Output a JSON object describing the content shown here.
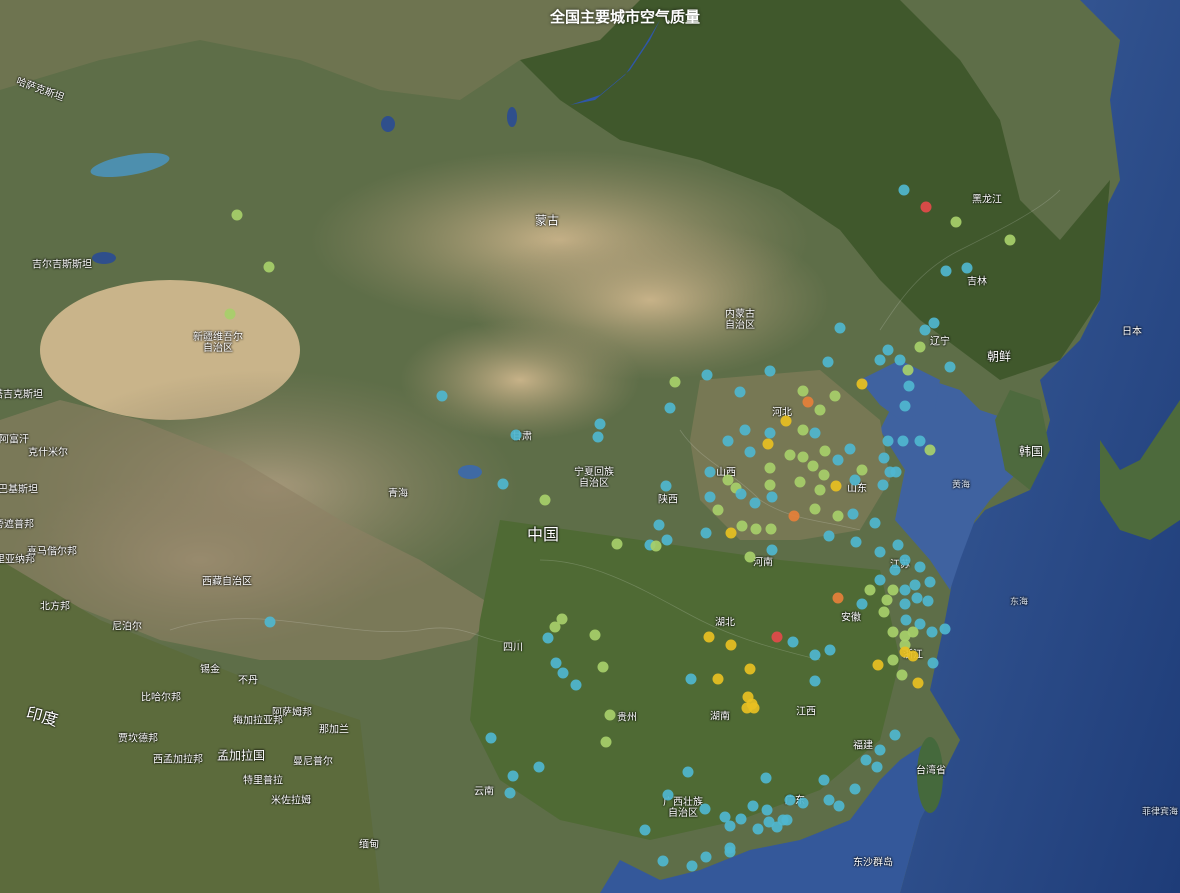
{
  "title": "全国主要城市空气质量",
  "labels": {
    "kazakhstan": "哈萨克斯坦",
    "mongolia": "蒙古",
    "inner_mongolia": "内蒙古\n自治区",
    "xinjiang": "新疆维吾尔\n自治区",
    "gansu": "甘肃",
    "ningxia": "宁夏回族\n自治区",
    "qinghai": "青海",
    "tibet": "西藏自治区",
    "china": "中国",
    "shanxi": "山西",
    "shaanxi": "陕西",
    "hebei": "河北",
    "shandong": "山东",
    "henan": "河南",
    "jiangsu": "江苏",
    "anhui": "安徽",
    "hubei": "湖北",
    "zhejiang": "浙江",
    "sichuan": "四川",
    "guizhou": "贵州",
    "hunan": "湖南",
    "jiangxi": "江西",
    "fujian": "福建",
    "yunnan": "云南",
    "guangxi": "广西壮族\n自治区",
    "guangdong": "广东",
    "taiwan": "台湾省",
    "jilin": "吉林",
    "liaoning": "辽宁",
    "heilongjiang": "黑龙江",
    "north_korea": "朝鲜",
    "south_korea": "韩国",
    "japan": "日本",
    "yellow_sea": "黄海",
    "east_sea": "东海",
    "philippine_sea": "菲律宾海",
    "xisha": "东沙群岛",
    "nepal": "尼泊尔",
    "india": "印度",
    "bhutan": "不丹",
    "bangladesh": "孟加拉国",
    "myanmar": "缅甸",
    "west_bengal": "西孟加拉邦",
    "assam": "阿萨姆邦",
    "meghalaya": "梅加拉亚邦",
    "nagaland": "那加兰",
    "manipur": "曼尼普尔",
    "tripura": "特里普拉",
    "mizoram": "米佐拉姆",
    "bihar": "比哈尔邦",
    "jharkhand": "贾坎德邦",
    "sikkim": "锡金",
    "uttar": "北方邦",
    "kyrgyz": "吉尔吉斯斯坦",
    "tajik": "塔吉克斯坦",
    "afghan": "阿富汗",
    "pak": "巴基斯坦",
    "kashmir": "克什米尔",
    "haryana": "哈里亚纳邦",
    "punjab": "旁遮普邦",
    "himachal": "喜马偕尔邦"
  },
  "colors": {
    "good": "#4fb6cf",
    "moderate": "#a7cf6a",
    "sensitive": "#e8c022",
    "unhealthy": "#e6803a",
    "severe": "#e34a4a"
  },
  "aqi_points": [
    [
      "good",
      904,
      190
    ],
    [
      "severe",
      926,
      207
    ],
    [
      "moderate",
      956,
      222
    ],
    [
      "moderate",
      1010,
      240
    ],
    [
      "good",
      967,
      268
    ],
    [
      "good",
      946,
      271
    ],
    [
      "moderate",
      237,
      215
    ],
    [
      "moderate",
      269,
      267
    ],
    [
      "moderate",
      230,
      314
    ],
    [
      "good",
      934,
      323
    ],
    [
      "good",
      925,
      330
    ],
    [
      "good",
      840,
      328
    ],
    [
      "moderate",
      920,
      347
    ],
    [
      "good",
      888,
      350
    ],
    [
      "good",
      900,
      360
    ],
    [
      "good",
      880,
      360
    ],
    [
      "good",
      828,
      362
    ],
    [
      "good",
      770,
      371
    ],
    [
      "moderate",
      908,
      370
    ],
    [
      "good",
      950,
      367
    ],
    [
      "sensitive",
      862,
      384
    ],
    [
      "good",
      909,
      386
    ],
    [
      "good",
      905,
      406
    ],
    [
      "moderate",
      675,
      382
    ],
    [
      "good",
      707,
      375
    ],
    [
      "good",
      740,
      392
    ],
    [
      "moderate",
      803,
      391
    ],
    [
      "unhealthy",
      808,
      402
    ],
    [
      "moderate",
      820,
      410
    ],
    [
      "good",
      670,
      408
    ],
    [
      "sensitive",
      786,
      421
    ],
    [
      "moderate",
      835,
      396
    ],
    [
      "good",
      442,
      396
    ],
    [
      "good",
      600,
      424
    ],
    [
      "good",
      598,
      437
    ],
    [
      "good",
      516,
      435
    ],
    [
      "moderate",
      803,
      430
    ],
    [
      "good",
      815,
      433
    ],
    [
      "good",
      745,
      430
    ],
    [
      "good",
      770,
      433
    ],
    [
      "good",
      728,
      441
    ],
    [
      "good",
      888,
      441
    ],
    [
      "good",
      903,
      441
    ],
    [
      "good",
      920,
      441
    ],
    [
      "moderate",
      930,
      450
    ],
    [
      "sensitive",
      768,
      444
    ],
    [
      "good",
      750,
      452
    ],
    [
      "moderate",
      790,
      455
    ],
    [
      "moderate",
      803,
      457
    ],
    [
      "moderate",
      825,
      451
    ],
    [
      "good",
      850,
      449
    ],
    [
      "good",
      838,
      460
    ],
    [
      "good",
      884,
      458
    ],
    [
      "good",
      890,
      472
    ],
    [
      "good",
      883,
      485
    ],
    [
      "good",
      896,
      472
    ],
    [
      "moderate",
      813,
      466
    ],
    [
      "moderate",
      824,
      475
    ],
    [
      "moderate",
      770,
      468
    ],
    [
      "good",
      710,
      472
    ],
    [
      "moderate",
      728,
      480
    ],
    [
      "moderate",
      736,
      488
    ],
    [
      "moderate",
      770,
      485
    ],
    [
      "moderate",
      800,
      482
    ],
    [
      "sensitive",
      836,
      486
    ],
    [
      "moderate",
      820,
      490
    ],
    [
      "good",
      855,
      480
    ],
    [
      "moderate",
      862,
      470
    ],
    [
      "good",
      503,
      484
    ],
    [
      "moderate",
      545,
      500
    ],
    [
      "good",
      666,
      486
    ],
    [
      "good",
      710,
      497
    ],
    [
      "good",
      741,
      494
    ],
    [
      "good",
      755,
      503
    ],
    [
      "good",
      772,
      497
    ],
    [
      "moderate",
      718,
      510
    ],
    [
      "moderate",
      815,
      509
    ],
    [
      "unhealthy",
      794,
      516
    ],
    [
      "moderate",
      838,
      516
    ],
    [
      "good",
      853,
      514
    ],
    [
      "good",
      875,
      523
    ],
    [
      "good",
      659,
      525
    ],
    [
      "moderate",
      742,
      526
    ],
    [
      "moderate",
      756,
      529
    ],
    [
      "moderate",
      771,
      529
    ],
    [
      "sensitive",
      731,
      533
    ],
    [
      "good",
      706,
      533
    ],
    [
      "good",
      650,
      545
    ],
    [
      "moderate",
      656,
      546
    ],
    [
      "moderate",
      617,
      544
    ],
    [
      "good",
      667,
      540
    ],
    [
      "good",
      829,
      536
    ],
    [
      "good",
      856,
      542
    ],
    [
      "moderate",
      750,
      557
    ],
    [
      "good",
      772,
      550
    ],
    [
      "good",
      880,
      552
    ],
    [
      "good",
      898,
      545
    ],
    [
      "good",
      905,
      560
    ],
    [
      "good",
      920,
      567
    ],
    [
      "good",
      895,
      570
    ],
    [
      "good",
      880,
      580
    ],
    [
      "moderate",
      870,
      590
    ],
    [
      "moderate",
      893,
      590
    ],
    [
      "good",
      905,
      590
    ],
    [
      "good",
      915,
      585
    ],
    [
      "good",
      930,
      582
    ],
    [
      "moderate",
      887,
      600
    ],
    [
      "good",
      905,
      604
    ],
    [
      "good",
      917,
      598
    ],
    [
      "good",
      928,
      601
    ],
    [
      "unhealthy",
      838,
      598
    ],
    [
      "good",
      862,
      604
    ],
    [
      "moderate",
      884,
      612
    ],
    [
      "good",
      270,
      622
    ],
    [
      "moderate",
      562,
      619
    ],
    [
      "moderate",
      555,
      627
    ],
    [
      "good",
      548,
      638
    ],
    [
      "moderate",
      595,
      635
    ],
    [
      "good",
      906,
      620
    ],
    [
      "good",
      920,
      624
    ],
    [
      "moderate",
      893,
      632
    ],
    [
      "moderate",
      905,
      636
    ],
    [
      "moderate",
      913,
      632
    ],
    [
      "good",
      932,
      632
    ],
    [
      "good",
      945,
      629
    ],
    [
      "sensitive",
      709,
      637
    ],
    [
      "severe",
      777,
      637
    ],
    [
      "sensitive",
      731,
      645
    ],
    [
      "good",
      793,
      642
    ],
    [
      "moderate",
      905,
      645
    ],
    [
      "sensitive",
      905,
      652
    ],
    [
      "sensitive",
      913,
      656
    ],
    [
      "sensitive",
      878,
      665
    ],
    [
      "moderate",
      893,
      660
    ],
    [
      "good",
      556,
      663
    ],
    [
      "moderate",
      603,
      667
    ],
    [
      "sensitive",
      750,
      669
    ],
    [
      "good",
      815,
      655
    ],
    [
      "good",
      830,
      650
    ],
    [
      "good",
      933,
      663
    ],
    [
      "good",
      563,
      673
    ],
    [
      "good",
      576,
      685
    ],
    [
      "good",
      691,
      679
    ],
    [
      "sensitive",
      718,
      679
    ],
    [
      "good",
      815,
      681
    ],
    [
      "moderate",
      902,
      675
    ],
    [
      "sensitive",
      918,
      683
    ],
    [
      "sensitive",
      748,
      697
    ],
    [
      "sensitive",
      752,
      704
    ],
    [
      "sensitive",
      747,
      708
    ],
    [
      "sensitive",
      754,
      708
    ],
    [
      "moderate",
      610,
      715
    ],
    [
      "good",
      491,
      738
    ],
    [
      "moderate",
      606,
      742
    ],
    [
      "good",
      895,
      735
    ],
    [
      "good",
      880,
      750
    ],
    [
      "good",
      866,
      760
    ],
    [
      "good",
      877,
      767
    ],
    [
      "good",
      539,
      767
    ],
    [
      "good",
      513,
      776
    ],
    [
      "good",
      510,
      793
    ],
    [
      "good",
      688,
      772
    ],
    [
      "good",
      766,
      778
    ],
    [
      "good",
      824,
      780
    ],
    [
      "good",
      855,
      789
    ],
    [
      "good",
      668,
      795
    ],
    [
      "good",
      790,
      800
    ],
    [
      "good",
      753,
      806
    ],
    [
      "good",
      767,
      810
    ],
    [
      "good",
      803,
      803
    ],
    [
      "good",
      829,
      800
    ],
    [
      "good",
      839,
      806
    ],
    [
      "good",
      705,
      809
    ],
    [
      "good",
      725,
      817
    ],
    [
      "good",
      741,
      819
    ],
    [
      "good",
      783,
      820
    ],
    [
      "good",
      645,
      830
    ],
    [
      "good",
      730,
      826
    ],
    [
      "good",
      758,
      829
    ],
    [
      "good",
      769,
      822
    ],
    [
      "good",
      777,
      827
    ],
    [
      "good",
      787,
      820
    ],
    [
      "good",
      730,
      848
    ],
    [
      "good",
      663,
      861
    ],
    [
      "good",
      706,
      857
    ],
    [
      "good",
      692,
      866
    ],
    [
      "good",
      730,
      852
    ]
  ]
}
